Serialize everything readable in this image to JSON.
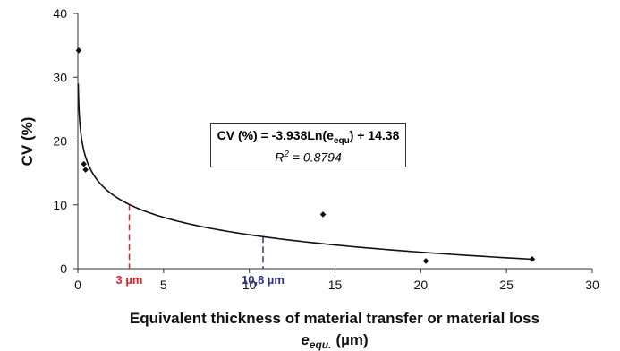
{
  "chart_data": {
    "type": "scatter",
    "title": "",
    "xlabel_line1": "Equivalent thickness of material transfer or material loss",
    "xlabel_line2_var": "e",
    "xlabel_line2_sub": "equ.",
    "xlabel_line2_unit": "(µm)",
    "ylabel": "CV (%)",
    "xlim": [
      0,
      30
    ],
    "ylim": [
      0,
      40
    ],
    "xticks": [
      0,
      5,
      10,
      15,
      20,
      25,
      30
    ],
    "yticks": [
      0,
      10,
      20,
      30,
      40
    ],
    "grid": false,
    "points": [
      {
        "x": 0.05,
        "y": 34.2
      },
      {
        "x": 0.35,
        "y": 16.4
      },
      {
        "x": 0.45,
        "y": 15.5
      },
      {
        "x": 14.3,
        "y": 8.5
      },
      {
        "x": 20.3,
        "y": 1.2
      },
      {
        "x": 26.5,
        "y": 1.5
      }
    ],
    "fit": {
      "type": "logarithmic",
      "a": -3.938,
      "b": 14.38
    },
    "equation_prefix": "CV (%) = -3.938Ln(e",
    "equation_sub": "equ",
    "equation_suffix": ") + 14.38",
    "r2_label": "R",
    "r2_sup": "2",
    "r2_value": " = 0.8794",
    "annotations": [
      {
        "x": 3,
        "label": "3 µm",
        "color": "#e8222a"
      },
      {
        "x": 10.8,
        "label": "10,8 µm",
        "color": "#2e3192"
      }
    ]
  },
  "colors": {
    "points": "#111111",
    "fit": "#111111",
    "axis": "#333333"
  }
}
